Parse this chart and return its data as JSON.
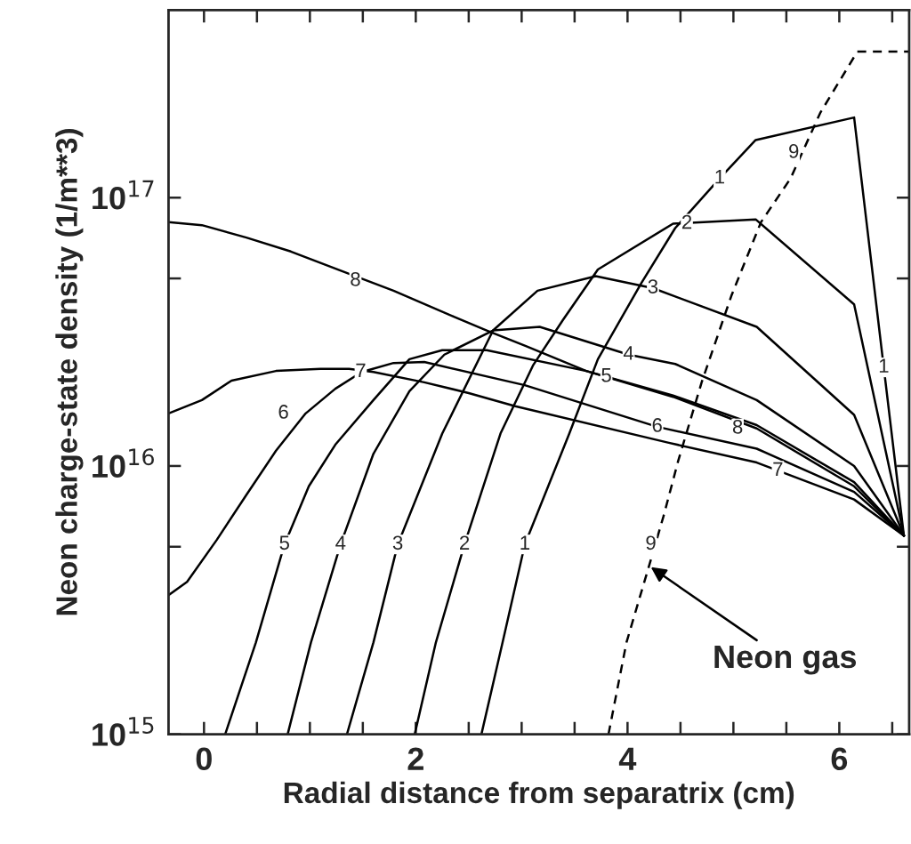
{
  "chart_data": {
    "type": "line",
    "xlabel": "Radial distance from separatrix (cm)",
    "ylabel": "Neon charge-state density (1/m**3)",
    "log": "y",
    "xlim": [
      -0.335,
      6.66
    ],
    "ylim": [
      1000000000000000.0,
      5e+17
    ],
    "xticks": [
      0,
      {
        "value": 0.5,
        "label": null
      },
      {
        "value": 1,
        "label": null
      },
      {
        "value": 1.5,
        "label": null
      },
      2,
      {
        "value": 2.5,
        "label": null
      },
      {
        "value": 3,
        "label": null
      },
      {
        "value": 3.5,
        "label": null
      },
      4,
      {
        "value": 4.5,
        "label": null
      },
      {
        "value": 5,
        "label": null
      },
      {
        "value": 5.5,
        "label": null
      },
      6,
      {
        "value": 6.5,
        "label": null
      }
    ],
    "yticks": [
      {
        "value": 1000000000000000.0,
        "label": "10$^{15}$"
      },
      {
        "value": 5000000000000000.0,
        "label": null
      },
      {
        "value": 1e+16,
        "label": "10$^{16}$"
      },
      {
        "value": 5e+16,
        "label": null
      },
      {
        "value": 1e+17,
        "label": "10$^{17}$"
      }
    ],
    "grid": false,
    "legend": false,
    "marker": "none",
    "series": [
      {
        "color": "#000000",
        "line_style": "solid",
        "x": [
          2.62,
          2.82,
          3.03,
          3.45,
          3.72,
          4.13,
          4.45,
          4.87,
          5.21,
          6.14,
          6.42,
          6.61
        ],
        "values": [
          1000000000000000.0,
          2200000000000000.0,
          5100000000000000.0,
          1.32e+16,
          2.5e+16,
          4.8e+16,
          7.7e+16,
          1.18e+17,
          1.64e+17,
          1.99e+17,
          2.33e+16,
          5500000000000000.0
        ]
      },
      {
        "color": "#000000",
        "line_style": "solid",
        "x": [
          1.99,
          2.19,
          2.46,
          2.8,
          3.11,
          3.39,
          3.72,
          4.43,
          5.21,
          6.14,
          6.61
        ],
        "values": [
          1000000000000000.0,
          2200000000000000.0,
          5100000000000000.0,
          1.32e+16,
          2.38e+16,
          3.5e+16,
          5.4e+16,
          8e+16,
          8.3e+16,
          4e+16,
          5500000000000000.0
        ]
      },
      {
        "color": "#000000",
        "line_style": "solid",
        "x": [
          1.35,
          1.6,
          1.83,
          2.25,
          2.73,
          3.15,
          3.7,
          4.24,
          5.22,
          6.14,
          6.61
        ],
        "values": [
          1000000000000000.0,
          2200000000000000.0,
          5100000000000000.0,
          1.32e+16,
          3.2e+16,
          4.5e+16,
          5.1e+16,
          4.6e+16,
          3.3e+16,
          1.55e+16,
          5500000000000000.0
        ]
      },
      {
        "color": "#000000",
        "line_style": "solid",
        "x": [
          0.79,
          1.01,
          1.29,
          1.6,
          1.94,
          2.27,
          2.73,
          3.17,
          4.01,
          4.45,
          5.22,
          6.14,
          6.61
        ],
        "values": [
          1000000000000000.0,
          2200000000000000.0,
          5100000000000000.0,
          1.11e+16,
          1.9e+16,
          2.6e+16,
          3.2e+16,
          3.3e+16,
          2.6e+16,
          2.4e+16,
          1.76e+16,
          1e+16,
          5500000000000000.0
        ]
      },
      {
        "color": "#000000",
        "line_style": "solid",
        "x": [
          0.2,
          0.49,
          0.76,
          0.99,
          1.24,
          1.6,
          1.94,
          2.25,
          2.67,
          3.61,
          4.43,
          5.22,
          6.14,
          6.61
        ],
        "values": [
          1000000000000000.0,
          2200000000000000.0,
          5100000000000000.0,
          8400000000000000.0,
          1.2e+16,
          1.76e+16,
          2.5e+16,
          2.7e+16,
          2.7e+16,
          2.26e+16,
          1.83e+16,
          1.42e+16,
          8700000000000000.0,
          5500000000000000.0
        ]
      },
      {
        "color": "#000000",
        "line_style": "solid",
        "x": [
          -0.335,
          -0.16,
          0.12,
          0.4,
          0.68,
          0.96,
          1.24,
          1.49,
          1.79,
          2.08,
          3.03,
          4.28,
          5.22,
          6.14,
          6.61
        ],
        "values": [
          3300000000000000.0,
          3700000000000000.0,
          5300000000000000.0,
          7800000000000000.0,
          1.14e+16,
          1.57e+16,
          1.94e+16,
          2.24e+16,
          2.42e+16,
          2.44e+16,
          2e+16,
          1.4e+16,
          1.16e+16,
          8000000000000000.0,
          5500000000000000.0
        ]
      },
      {
        "color": "#000000",
        "line_style": "solid",
        "x": [
          -0.335,
          -0.02,
          0.26,
          0.68,
          1.1,
          1.37,
          1.6,
          2.08,
          2.5,
          2.94,
          4.39,
          5.22,
          6.14,
          6.61
        ],
        "values": [
          1.57e+16,
          1.76e+16,
          2.08e+16,
          2.26e+16,
          2.3e+16,
          2.3e+16,
          2.24e+16,
          2.05e+16,
          1.87e+16,
          1.67e+16,
          1.22e+16,
          1.03e+16,
          7500000000000000.0,
          5500000000000000.0
        ]
      },
      {
        "color": "#000000",
        "line_style": "solid",
        "x": [
          -0.335,
          -0.02,
          0.4,
          0.82,
          1.37,
          1.79,
          2.36,
          2.67,
          3.04,
          3.61,
          4.43,
          5.22,
          6.14,
          6.61
        ],
        "values": [
          8.1e+16,
          7.9e+16,
          7.1e+16,
          6.3e+16,
          5.2e+16,
          4.5e+16,
          3.6e+16,
          3.2e+16,
          2.8e+16,
          2.26e+16,
          1.81e+16,
          1.38e+16,
          8400000000000000.0,
          5500000000000000.0
        ]
      },
      {
        "color": "#000000",
        "line_style": "dashed",
        "x": [
          3.82,
          3.99,
          4.2,
          4.34,
          4.48,
          4.7,
          4.98,
          5.26,
          5.54,
          5.82,
          6.17,
          6.66
        ],
        "values": [
          1000000000000000.0,
          2200000000000000.0,
          4200000000000000.0,
          6500000000000000.0,
          1.05e+16,
          2.05e+16,
          4.3e+16,
          8.1e+16,
          1.18e+17,
          2.07e+17,
          3.5e+17,
          3.5e+17
        ]
      }
    ],
    "annotations": [
      {
        "text": "8",
        "x": 1.43,
        "y": 4.9e+16
      },
      {
        "text": "7",
        "x": 1.48,
        "y": 2.24e+16
      },
      {
        "text": "6",
        "x": 0.75,
        "y": 1.57e+16
      },
      {
        "text": "5",
        "x": 0.76,
        "y": 5100000000000000.0
      },
      {
        "text": "4",
        "x": 1.29,
        "y": 5100000000000000.0
      },
      {
        "text": "3",
        "x": 1.83,
        "y": 5100000000000000.0
      },
      {
        "text": "2",
        "x": 2.46,
        "y": 5100000000000000.0
      },
      {
        "text": "1",
        "x": 3.03,
        "y": 5100000000000000.0
      },
      {
        "text": "9",
        "x": 4.22,
        "y": 5100000000000000.0
      },
      {
        "text": "1",
        "x": 4.87,
        "y": 1.18e+17
      },
      {
        "text": "2",
        "x": 4.56,
        "y": 8e+16
      },
      {
        "text": "3",
        "x": 4.24,
        "y": 4.6e+16
      },
      {
        "text": "4",
        "x": 4.01,
        "y": 2.6e+16
      },
      {
        "text": "5",
        "x": 3.8,
        "y": 2.15e+16
      },
      {
        "text": "6",
        "x": 4.28,
        "y": 1.4e+16
      },
      {
        "text": "8",
        "x": 5.04,
        "y": 1.38e+16
      },
      {
        "text": "7",
        "x": 5.42,
        "y": 9600000000000000.0
      },
      {
        "text": "9",
        "x": 5.57,
        "y": 1.47e+17
      },
      {
        "text": "1",
        "x": 6.42,
        "y": 2.33e+16
      },
      {
        "text": "Neon gas",
        "x": 4.22,
        "y": 4200000000000000.0
      }
    ]
  }
}
